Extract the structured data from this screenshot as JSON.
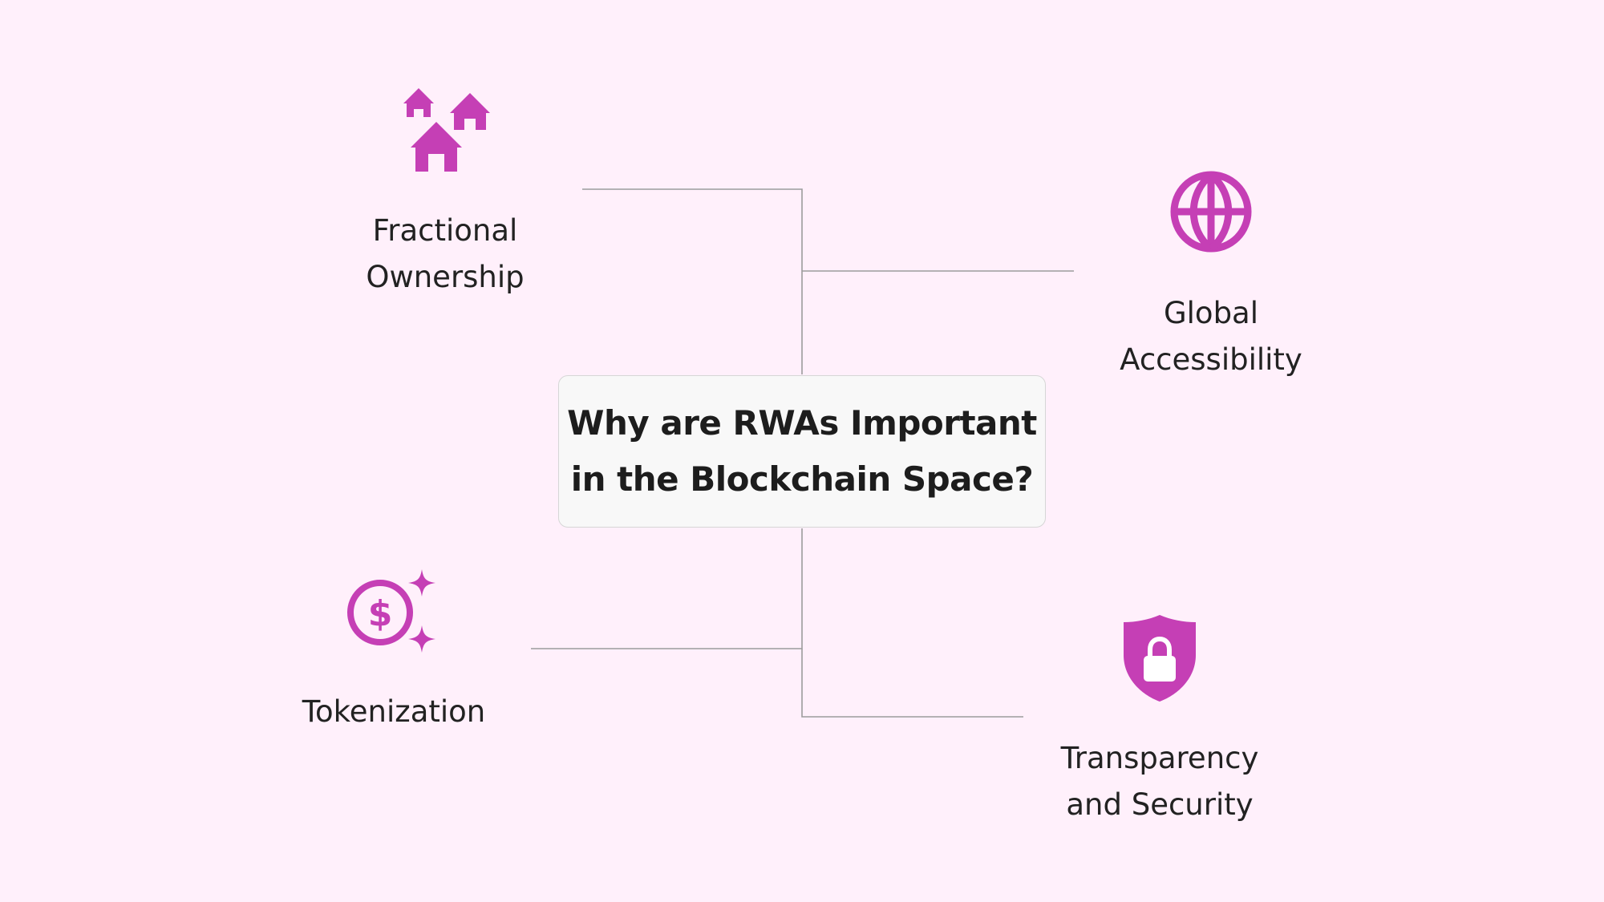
{
  "colors": {
    "background": "#fff0fb",
    "accent": "#c53fb5",
    "connector": "#9c9c9c",
    "box_fill": "#f8f8f8",
    "box_border": "#d6d6d6"
  },
  "center": {
    "title_line1": "Why are RWAs Important",
    "title_line2": "in the Blockchain Space?"
  },
  "nodes": {
    "fractional_ownership": {
      "icon": "houses-icon",
      "line1": "Fractional",
      "line2": "Ownership"
    },
    "global_accessibility": {
      "icon": "globe-icon",
      "line1": "Global",
      "line2": "Accessibility"
    },
    "tokenization": {
      "icon": "dollar-coin-sparkle-icon",
      "line1": "Tokenization"
    },
    "transparency_security": {
      "icon": "shield-lock-icon",
      "line1": "Transparency",
      "line2": "and Security"
    }
  }
}
